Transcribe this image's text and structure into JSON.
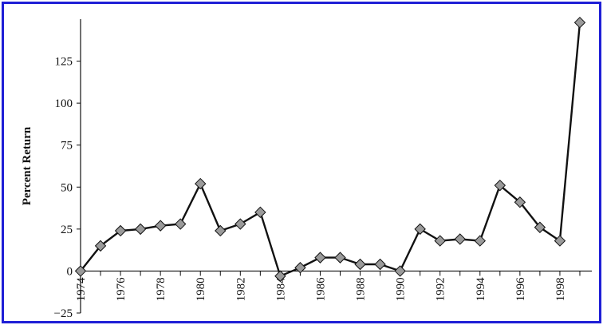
{
  "chart_data": {
    "type": "line",
    "title": "",
    "xlabel": "",
    "ylabel": "Percent Return",
    "x": [
      1974,
      1975,
      1976,
      1977,
      1978,
      1979,
      1980,
      1981,
      1982,
      1983,
      1984,
      1985,
      1986,
      1987,
      1988,
      1989,
      1990,
      1991,
      1992,
      1993,
      1994,
      1995,
      1996,
      1997,
      1998,
      1999
    ],
    "series": [
      {
        "values": [
          0,
          15,
          24,
          25,
          27,
          28,
          52,
          24,
          28,
          35,
          -3,
          2,
          8,
          8,
          4,
          4,
          0,
          25,
          18,
          19,
          18,
          51,
          41,
          26,
          18,
          148
        ]
      }
    ],
    "x_tick_labels": [
      "1974",
      "1976",
      "1978",
      "1980",
      "1982",
      "1984",
      "1986",
      "1988",
      "1990",
      "1992",
      "1994",
      "1996",
      "1998"
    ],
    "y_ticks": [
      -25,
      0,
      25,
      50,
      75,
      100,
      125
    ],
    "y_tick_labels": [
      "−25",
      "0",
      "25",
      "50",
      "75",
      "100",
      "125"
    ],
    "xlim": [
      1974,
      1999.6
    ],
    "ylim": [
      -25,
      150
    ],
    "grid": false,
    "colors": {
      "line": "#111111",
      "marker": "#9a9a9a",
      "frame": "#1f1fd6"
    }
  }
}
